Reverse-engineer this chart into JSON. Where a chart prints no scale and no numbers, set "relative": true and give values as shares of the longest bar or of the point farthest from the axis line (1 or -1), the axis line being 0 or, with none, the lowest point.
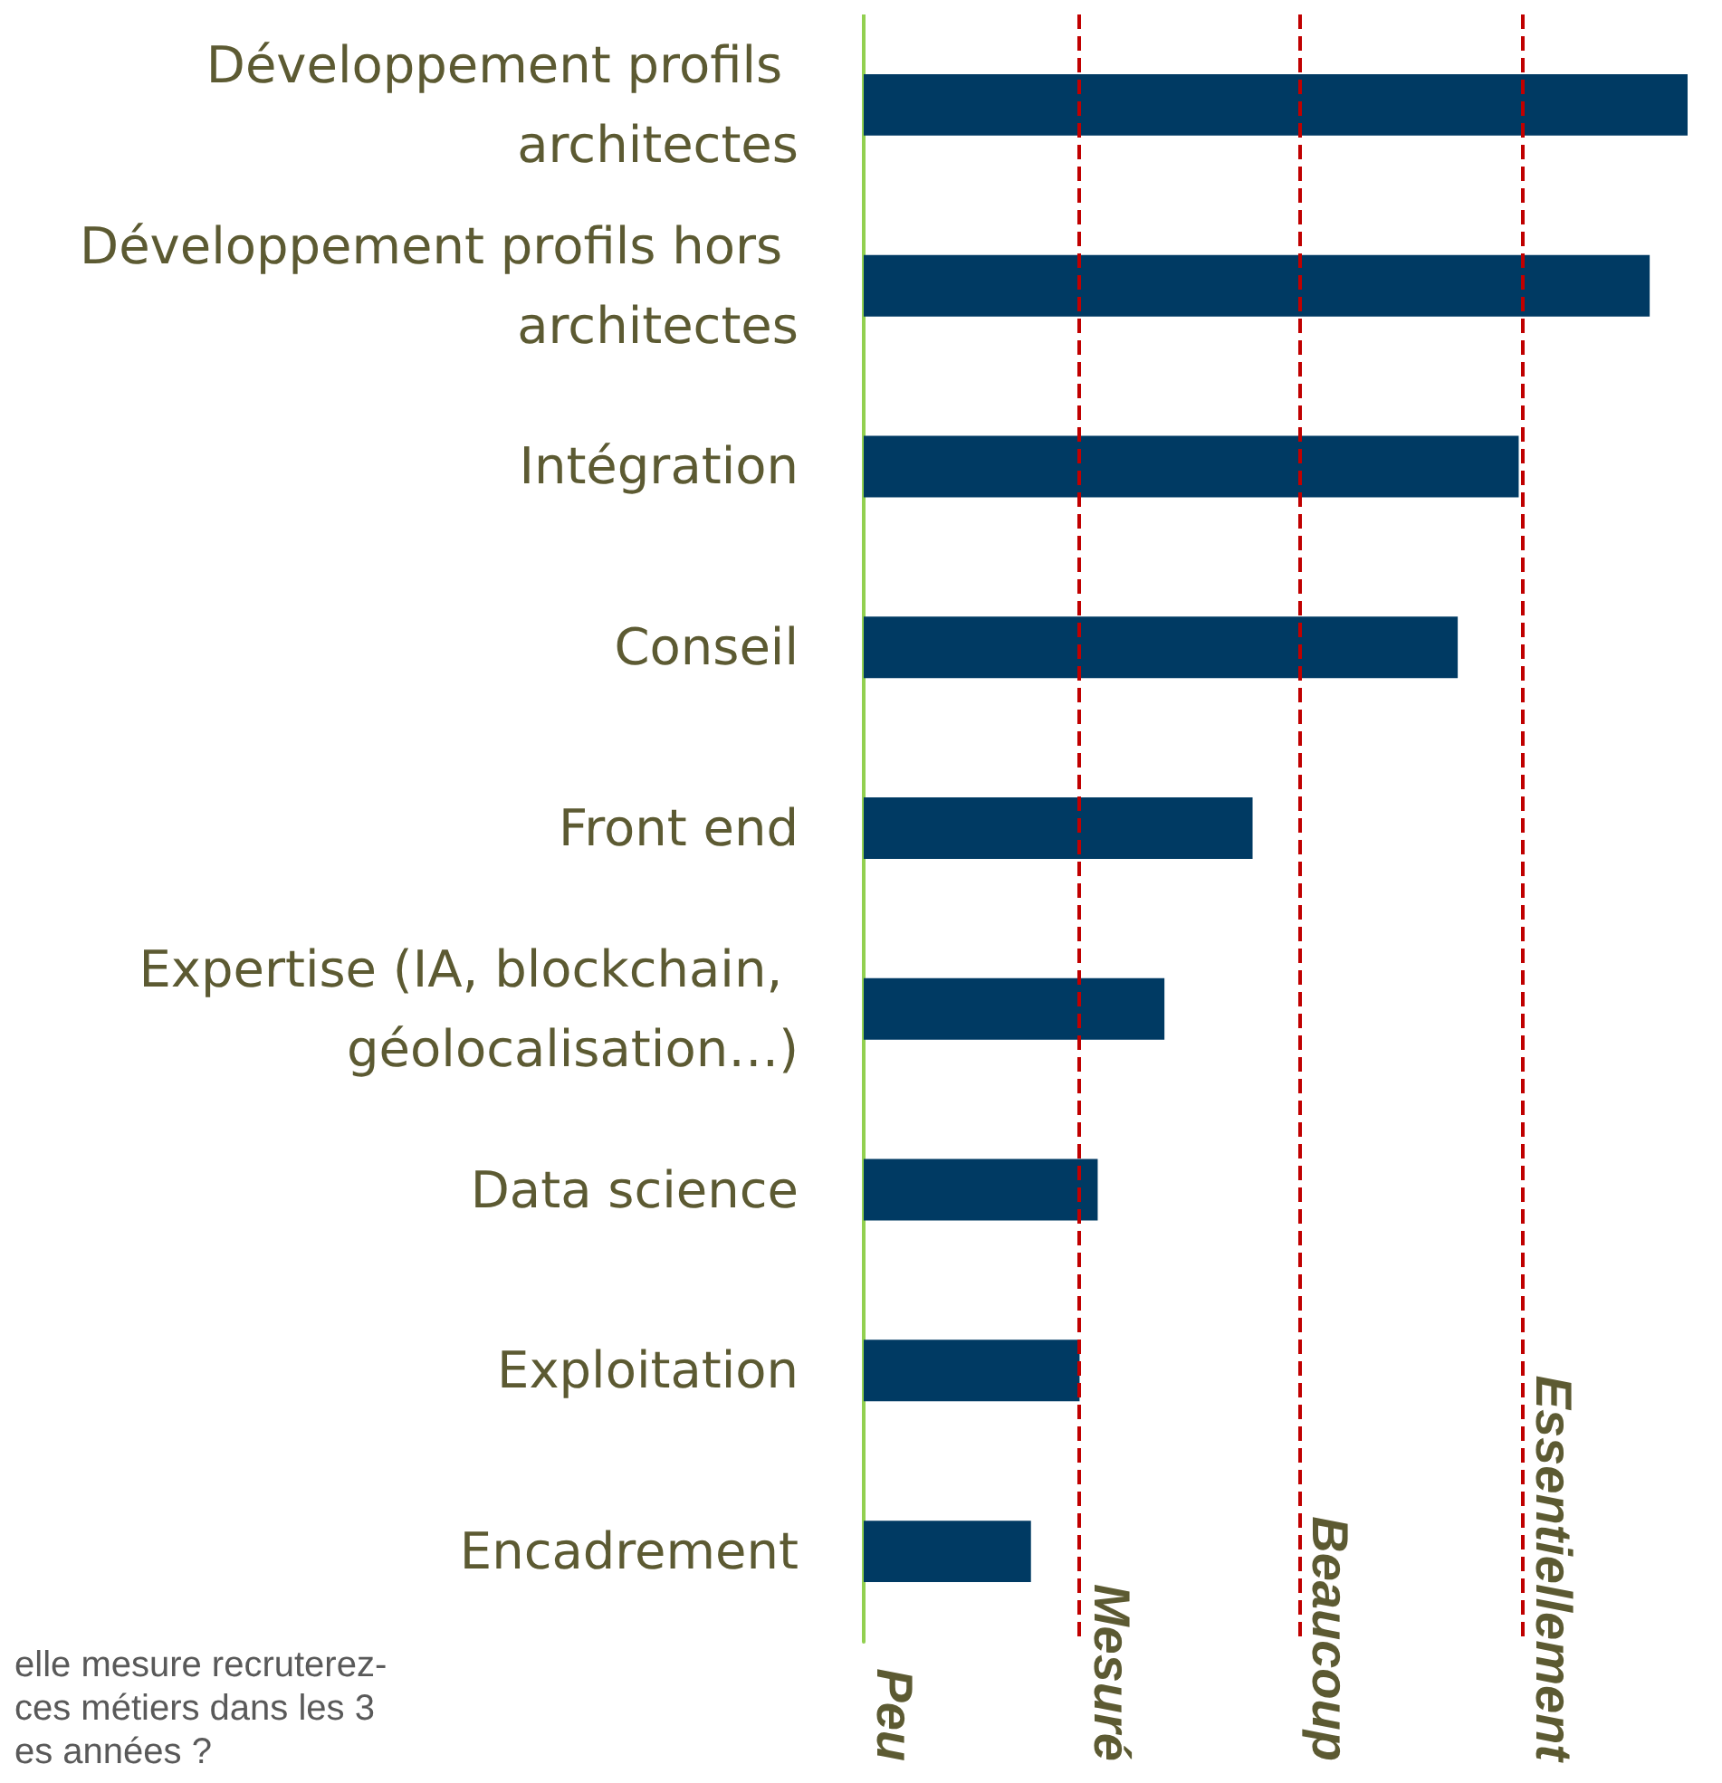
{
  "chart_data": {
    "type": "bar",
    "orientation": "horizontal",
    "relative": true,
    "categories": [
      "Développement profils architectes",
      "Développement profils hors architectes",
      "Intégration",
      "Conseil",
      "Front end",
      "Expertise (IA, blockchain, géolocalisation…)",
      "Data science",
      "Exploitation",
      "Encadrement"
    ],
    "series": [
      {
        "color": "#003a63",
        "values": [
          1,
          0.954,
          0.795,
          0.721,
          0.472,
          0.365,
          0.284,
          0.262,
          0.203
        ]
      }
    ],
    "ref_lines": [
      {
        "axis": "x",
        "value": 0.264,
        "label": "Mesuré",
        "color": "#c00000",
        "line_style": "dashed"
      },
      {
        "axis": "x",
        "value": 0.529,
        "label": "Beaucoup",
        "color": "#c00000",
        "line_style": "dashed"
      },
      {
        "axis": "x",
        "value": 0.8,
        "label": "Essentiellement",
        "color": "#c00000",
        "line_style": "dashed"
      }
    ],
    "annotations": [
      "Peu",
      "elle mesure recruterez-\nces métiers dans les 3\nes années ?"
    ]
  }
}
